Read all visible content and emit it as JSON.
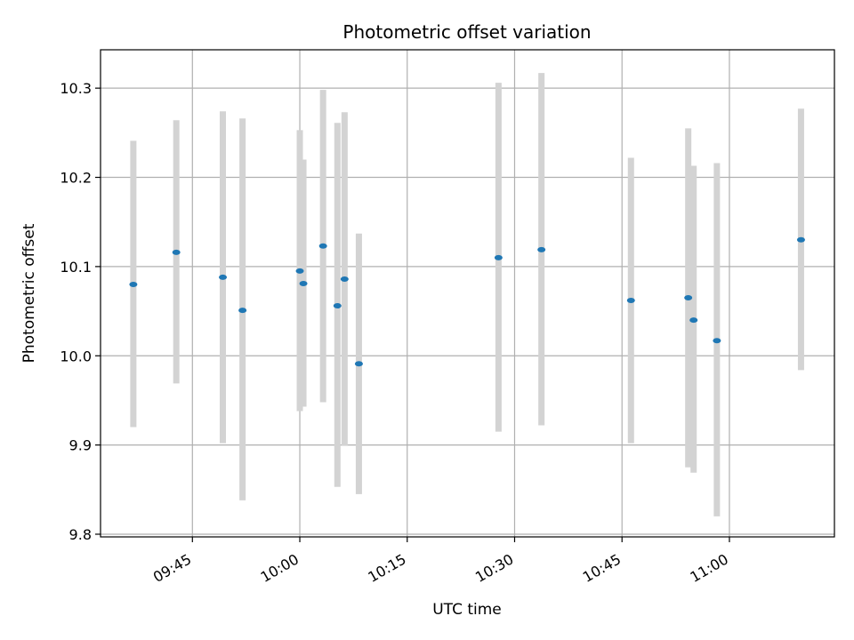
{
  "chart_data": {
    "type": "scatter",
    "title": "Photometric offset variation",
    "xlabel": "UTC time",
    "ylabel": "Photometric offset",
    "x_ticks": [
      "09:45",
      "10:00",
      "10:15",
      "10:30",
      "10:45",
      "11:00"
    ],
    "y_ticks": [
      "9.8",
      "9.9",
      "10.0",
      "10.1",
      "10.2",
      "10.3"
    ],
    "ylim": [
      9.797,
      10.343
    ],
    "xlim": [
      "09:32:10",
      "11:14:40"
    ],
    "grid": true,
    "marker_color": "#1f77b4",
    "errorbar_color": "#d3d3d3",
    "points": [
      {
        "t": "09:36:45",
        "y": 10.08,
        "ylow": 9.92,
        "yhigh": 10.241
      },
      {
        "t": "09:42:45",
        "y": 10.116,
        "ylow": 9.969,
        "yhigh": 10.264
      },
      {
        "t": "09:49:15",
        "y": 10.088,
        "ylow": 9.902,
        "yhigh": 10.274
      },
      {
        "t": "09:52:00",
        "y": 10.051,
        "ylow": 9.838,
        "yhigh": 10.266
      },
      {
        "t": "10:00:00",
        "y": 10.095,
        "ylow": 9.938,
        "yhigh": 10.253
      },
      {
        "t": "10:00:30",
        "y": 10.081,
        "ylow": 9.943,
        "yhigh": 10.22
      },
      {
        "t": "10:03:15",
        "y": 10.123,
        "ylow": 9.948,
        "yhigh": 10.298
      },
      {
        "t": "10:05:15",
        "y": 10.056,
        "ylow": 9.853,
        "yhigh": 10.261
      },
      {
        "t": "10:06:15",
        "y": 10.086,
        "ylow": 9.899,
        "yhigh": 10.273
      },
      {
        "t": "10:08:15",
        "y": 9.991,
        "ylow": 9.845,
        "yhigh": 10.137
      },
      {
        "t": "10:27:45",
        "y": 10.11,
        "ylow": 9.915,
        "yhigh": 10.306
      },
      {
        "t": "10:33:45",
        "y": 10.119,
        "ylow": 9.922,
        "yhigh": 10.317
      },
      {
        "t": "10:46:15",
        "y": 10.062,
        "ylow": 9.902,
        "yhigh": 10.222
      },
      {
        "t": "10:54:15",
        "y": 10.065,
        "ylow": 9.875,
        "yhigh": 10.255
      },
      {
        "t": "10:55:00",
        "y": 10.04,
        "ylow": 9.869,
        "yhigh": 10.213
      },
      {
        "t": "10:58:15",
        "y": 10.017,
        "ylow": 9.82,
        "yhigh": 10.216
      },
      {
        "t": "11:10:00",
        "y": 10.13,
        "ylow": 9.984,
        "yhigh": 10.277
      }
    ]
  }
}
